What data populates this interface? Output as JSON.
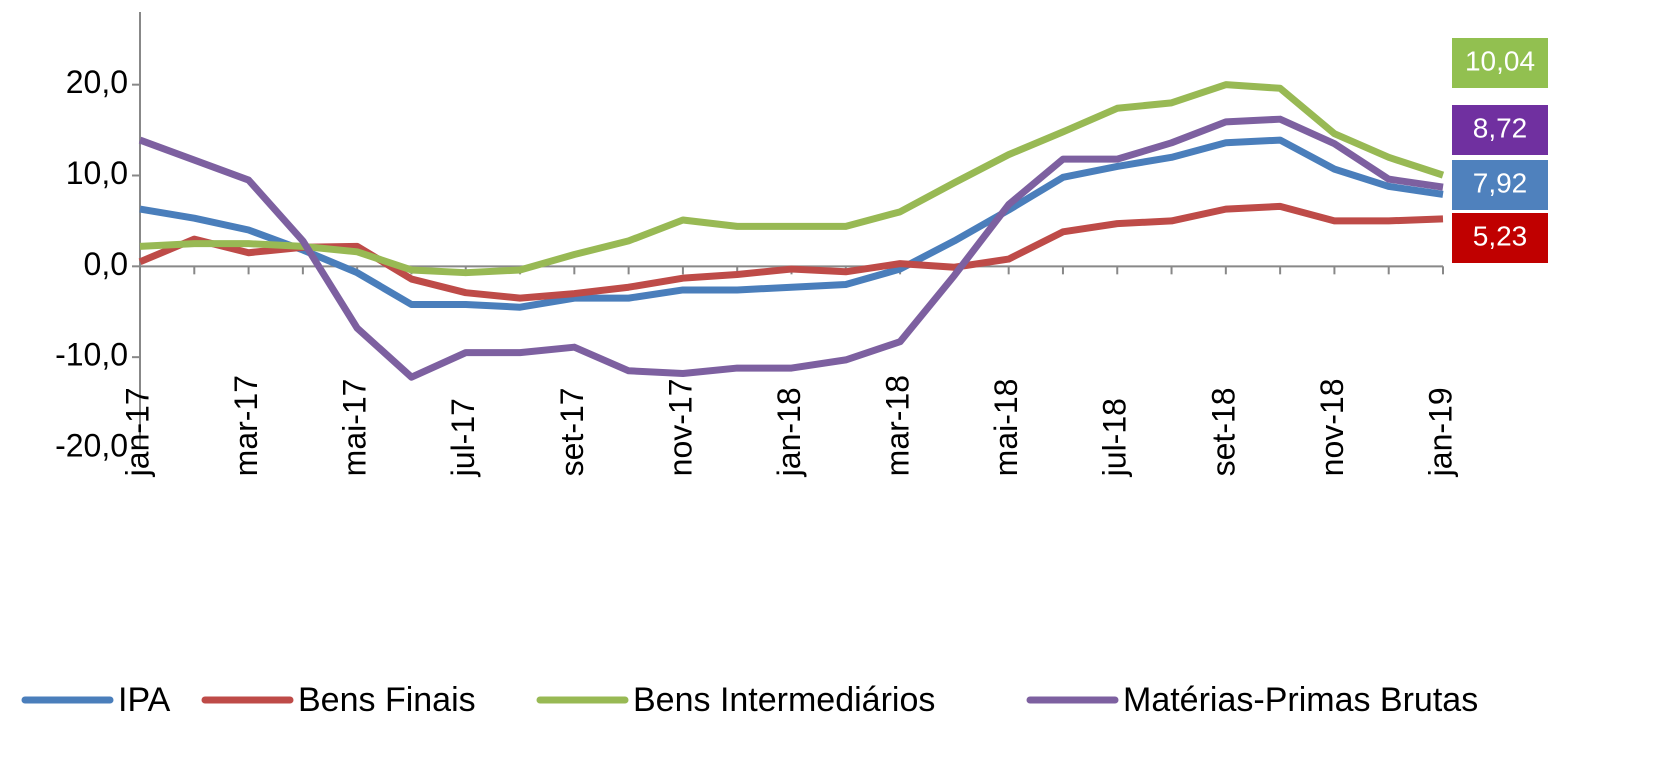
{
  "chart_data": {
    "type": "line",
    "categories": [
      "jan-17",
      null,
      "mar-17",
      null,
      "mai-17",
      null,
      "jul-17",
      null,
      "set-17",
      null,
      "nov-17",
      null,
      "jan-18",
      null,
      "mar-18",
      null,
      "mai-18",
      null,
      "jul-18",
      null,
      "set-18",
      null,
      "nov-18",
      null,
      "jan-19"
    ],
    "ylim": [
      -20,
      28
    ],
    "yticks": [
      {
        "value": -20,
        "label": "-20,0"
      },
      {
        "value": -10,
        "label": "-10,0"
      },
      {
        "value": 0,
        "label": "0,0"
      },
      {
        "value": 10,
        "label": "10,0"
      },
      {
        "value": 20,
        "label": "20,0"
      }
    ],
    "legend": "bottom",
    "series": [
      {
        "name": "IPA",
        "color": "#4a7ebb",
        "label_color": "#4f81bd",
        "values": [
          6.3,
          5.3,
          4.0,
          1.8,
          -0.7,
          -4.2,
          -4.2,
          -4.5,
          -3.5,
          -3.5,
          -2.6,
          -2.6,
          -2.3,
          -2.0,
          -0.3,
          2.8,
          6.2,
          9.8,
          11.0,
          12.0,
          13.6,
          13.9,
          10.7,
          8.8,
          7.92
        ],
        "value_labels": [
          null,
          null,
          null,
          null,
          null,
          null,
          null,
          null,
          null,
          null,
          null,
          null,
          null,
          null,
          null,
          null,
          null,
          null,
          null,
          null,
          null,
          null,
          null,
          null,
          "7,92"
        ]
      },
      {
        "name": "Bens Finais",
        "color": "#be4b48",
        "label_color": "#c00000",
        "values": [
          0.5,
          3.0,
          1.5,
          2.1,
          2.2,
          -1.4,
          -2.9,
          -3.5,
          -3.0,
          -2.3,
          -1.3,
          -0.9,
          -0.3,
          -0.6,
          0.3,
          -0.1,
          0.8,
          3.8,
          4.7,
          5.0,
          6.3,
          6.6,
          5.0,
          5.0,
          5.23
        ],
        "value_labels": [
          null,
          null,
          null,
          null,
          null,
          null,
          null,
          null,
          null,
          null,
          null,
          null,
          null,
          null,
          null,
          null,
          null,
          null,
          null,
          null,
          null,
          null,
          null,
          null,
          "5,23"
        ]
      },
      {
        "name": "Bens Intermediários",
        "color": "#98b954",
        "label_color": "#92c050",
        "values": [
          2.2,
          2.5,
          2.5,
          2.2,
          1.6,
          -0.4,
          -0.7,
          -0.4,
          1.3,
          2.8,
          5.1,
          4.4,
          4.4,
          4.4,
          6.0,
          9.2,
          12.3,
          14.8,
          17.4,
          18.0,
          20.0,
          19.6,
          14.6,
          12.0,
          10.04
        ],
        "value_labels": [
          null,
          null,
          null,
          null,
          null,
          null,
          null,
          null,
          null,
          null,
          null,
          null,
          null,
          null,
          null,
          null,
          null,
          null,
          null,
          null,
          null,
          null,
          null,
          null,
          "10,04"
        ]
      },
      {
        "name": "Matérias-Primas Brutas",
        "color": "#7d60a0",
        "label_color": "#7030a0",
        "values": [
          13.9,
          11.7,
          9.5,
          2.8,
          -6.8,
          -12.2,
          -9.5,
          -9.5,
          -8.9,
          -11.5,
          -11.8,
          -11.2,
          -11.2,
          -10.3,
          -8.3,
          -1.0,
          6.8,
          11.8,
          11.8,
          13.6,
          15.9,
          16.2,
          13.5,
          9.6,
          8.72
        ],
        "value_labels": [
          null,
          null,
          null,
          null,
          null,
          null,
          null,
          null,
          null,
          null,
          null,
          null,
          null,
          null,
          null,
          null,
          null,
          null,
          null,
          null,
          null,
          null,
          null,
          null,
          "8,72"
        ]
      }
    ]
  }
}
